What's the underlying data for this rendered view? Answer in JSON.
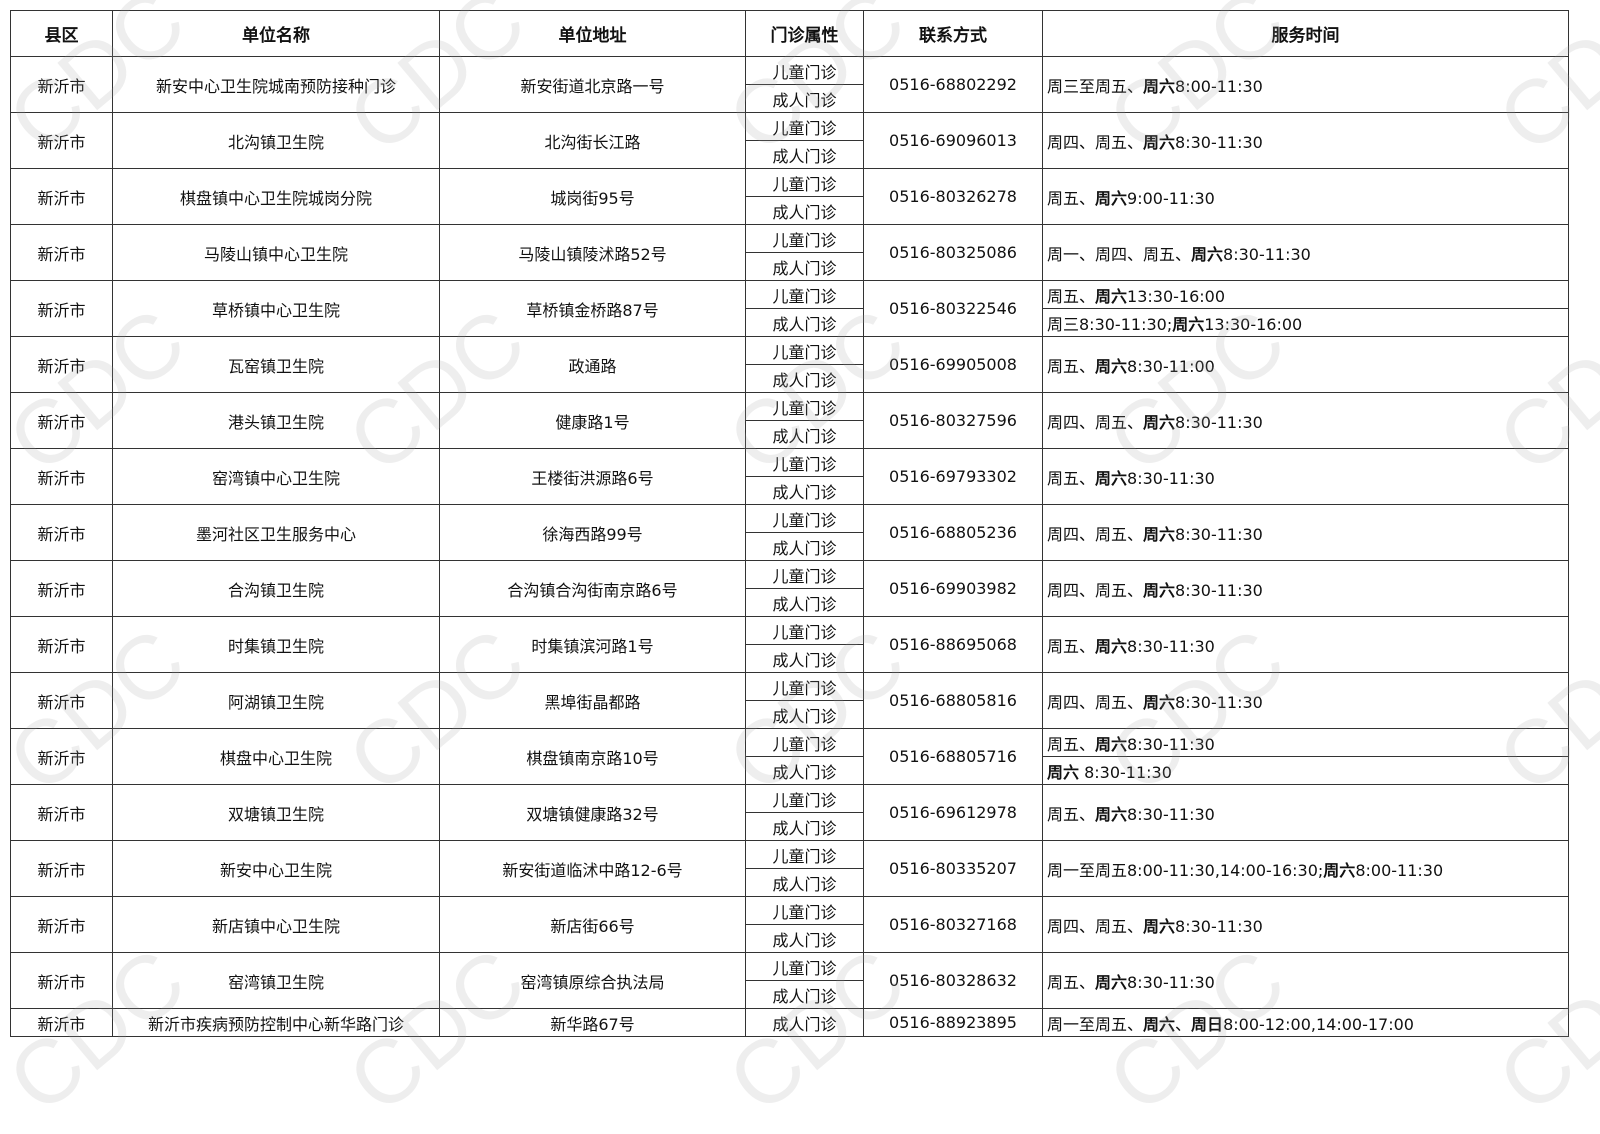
{
  "watermark": "CDC",
  "headers": [
    "县区",
    "单位名称",
    "单位地址",
    "门诊属性",
    "联系方式",
    "服务时间"
  ],
  "clinic_types": {
    "child": "儿童门诊",
    "adult": "成人门诊"
  },
  "rows": [
    {
      "district": "新沂市",
      "name": "新安中心卫生院城南预防接种门诊",
      "address": "新安街道北京路一号",
      "phone": "0516-68802292",
      "service": [
        [
          {
            "t": "周三至周五、"
          },
          {
            "t": "周六",
            "b": true
          },
          {
            "t": "8:00-11:30"
          }
        ]
      ]
    },
    {
      "district": "新沂市",
      "name": "北沟镇卫生院",
      "address": "北沟街长江路",
      "phone": "0516-69096013",
      "service": [
        [
          {
            "t": "周四、周五、"
          },
          {
            "t": "周六",
            "b": true
          },
          {
            "t": "8:30-11:30"
          }
        ]
      ]
    },
    {
      "district": "新沂市",
      "name": "棋盘镇中心卫生院城岗分院",
      "address": "城岗街95号",
      "phone": "0516-80326278",
      "service": [
        [
          {
            "t": "周五、"
          },
          {
            "t": "周六",
            "b": true
          },
          {
            "t": "9:00-11:30"
          }
        ]
      ]
    },
    {
      "district": "新沂市",
      "name": "马陵山镇中心卫生院",
      "address": "马陵山镇陵沭路52号",
      "phone": "0516-80325086",
      "service": [
        [
          {
            "t": "周一、周四、周五、"
          },
          {
            "t": "周六",
            "b": true
          },
          {
            "t": "8:30-11:30"
          }
        ]
      ]
    },
    {
      "district": "新沂市",
      "name": "草桥镇中心卫生院",
      "address": "草桥镇金桥路87号",
      "phone": "0516-80322546",
      "service": [
        [
          {
            "t": "周五、"
          },
          {
            "t": "周六",
            "b": true
          },
          {
            "t": "13:30-16:00"
          }
        ],
        [
          {
            "t": "周三8:30-11:30;"
          },
          {
            "t": "周六",
            "b": true
          },
          {
            "t": "13:30-16:00"
          }
        ]
      ]
    },
    {
      "district": "新沂市",
      "name": "瓦窑镇卫生院",
      "address": "政通路",
      "phone": "0516-69905008",
      "service": [
        [
          {
            "t": "周五、"
          },
          {
            "t": "周六",
            "b": true
          },
          {
            "t": "8:30-11:00"
          }
        ]
      ]
    },
    {
      "district": "新沂市",
      "name": "港头镇卫生院",
      "address": "健康路1号",
      "phone": "0516-80327596",
      "service": [
        [
          {
            "t": "周四、周五、"
          },
          {
            "t": "周六",
            "b": true
          },
          {
            "t": "8:30-11:30"
          }
        ]
      ]
    },
    {
      "district": "新沂市",
      "name": "窑湾镇中心卫生院",
      "address": "王楼街洪源路6号",
      "phone": "0516-69793302",
      "service": [
        [
          {
            "t": "周五、"
          },
          {
            "t": "周六",
            "b": true
          },
          {
            "t": "8:30-11:30"
          }
        ]
      ]
    },
    {
      "district": "新沂市",
      "name": "墨河社区卫生服务中心",
      "address": "徐海西路99号",
      "phone": "0516-68805236",
      "service": [
        [
          {
            "t": "周四、周五、"
          },
          {
            "t": "周六",
            "b": true
          },
          {
            "t": "8:30-11:30"
          }
        ]
      ]
    },
    {
      "district": "新沂市",
      "name": "合沟镇卫生院",
      "address": "合沟镇合沟街南京路6号",
      "phone": "0516-69903982",
      "service": [
        [
          {
            "t": "周四、周五、"
          },
          {
            "t": "周六",
            "b": true
          },
          {
            "t": "8:30-11:30"
          }
        ]
      ]
    },
    {
      "district": "新沂市",
      "name": "时集镇卫生院",
      "address": "时集镇滨河路1号",
      "phone": "0516-88695068",
      "service": [
        [
          {
            "t": "周五、"
          },
          {
            "t": "周六",
            "b": true
          },
          {
            "t": "8:30-11:30"
          }
        ]
      ]
    },
    {
      "district": "新沂市",
      "name": "阿湖镇卫生院",
      "address": "黑埠街晶都路",
      "phone": "0516-68805816",
      "service": [
        [
          {
            "t": "周四、周五、"
          },
          {
            "t": "周六",
            "b": true
          },
          {
            "t": "8:30-11:30"
          }
        ]
      ]
    },
    {
      "district": "新沂市",
      "name": "棋盘中心卫生院",
      "address": "棋盘镇南京路10号",
      "phone": "0516-68805716",
      "service": [
        [
          {
            "t": "周五、"
          },
          {
            "t": "周六",
            "b": true
          },
          {
            "t": "8:30-11:30"
          }
        ],
        [
          {
            "t": "周六",
            "b": true
          },
          {
            "t": " 8:30-11:30"
          }
        ]
      ]
    },
    {
      "district": "新沂市",
      "name": "双塘镇卫生院",
      "address": "双塘镇健康路32号",
      "phone": "0516-69612978",
      "service": [
        [
          {
            "t": "周五、"
          },
          {
            "t": "周六",
            "b": true
          },
          {
            "t": "8:30-11:30"
          }
        ]
      ]
    },
    {
      "district": "新沂市",
      "name": "新安中心卫生院",
      "address": "新安街道临沭中路12-6号",
      "phone": "0516-80335207",
      "service": [
        [
          {
            "t": "周一至周五8:00-11:30,14:00-16:30;"
          },
          {
            "t": "周六",
            "b": true
          },
          {
            "t": "8:00-11:30"
          }
        ]
      ]
    },
    {
      "district": "新沂市",
      "name": "新店镇中心卫生院",
      "address": "新店街66号",
      "phone": "0516-80327168",
      "service": [
        [
          {
            "t": "周四、周五、"
          },
          {
            "t": "周六",
            "b": true
          },
          {
            "t": "8:30-11:30"
          }
        ]
      ]
    },
    {
      "district": "新沂市",
      "name": "窑湾镇卫生院",
      "address": "窑湾镇原综合执法局",
      "phone": "0516-80328632",
      "service": [
        [
          {
            "t": "周五、"
          },
          {
            "t": "周六",
            "b": true
          },
          {
            "t": "8:30-11:30"
          }
        ]
      ]
    },
    {
      "district": "新沂市",
      "name": "新沂市疾病预防控制中心新华路门诊",
      "address": "新华路67号",
      "phone": "0516-88923895",
      "adult_only": true,
      "service": [
        [
          {
            "t": "周一至周五、"
          },
          {
            "t": "周六",
            "b": true
          },
          {
            "t": "、"
          },
          {
            "t": "周日",
            "b": true
          },
          {
            "t": "8:00-12:00,14:00-17:00"
          }
        ]
      ]
    }
  ]
}
